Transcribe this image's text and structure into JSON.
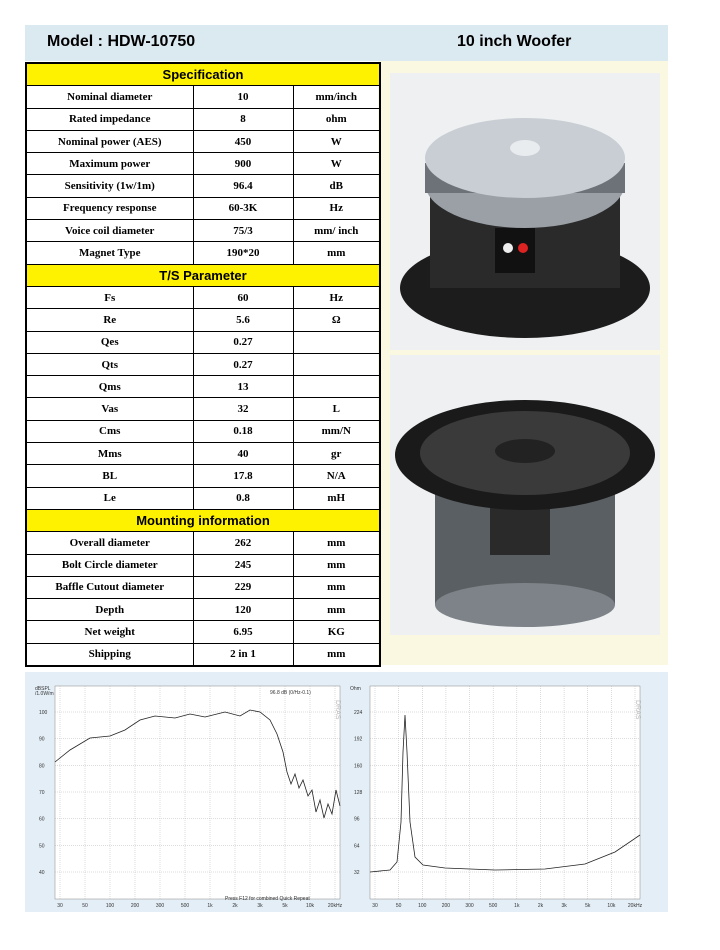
{
  "header": {
    "model": "Model : HDW-10750",
    "product": "10 inch Woofer"
  },
  "sections": [
    {
      "title": "Specification",
      "rows": [
        {
          "name": "Nominal diameter",
          "value": "10",
          "unit": "mm/inch"
        },
        {
          "name": "Rated impedance",
          "value": "8",
          "unit": "ohm"
        },
        {
          "name": "Nominal power (AES)",
          "value": "450",
          "unit": "W"
        },
        {
          "name": "Maximum power",
          "value": "900",
          "unit": "W"
        },
        {
          "name": "Sensitivity (1w/1m)",
          "value": "96.4",
          "unit": "dB"
        },
        {
          "name": "Frequency response",
          "value": "60-3K",
          "unit": "Hz"
        },
        {
          "name": "Voice coil diameter",
          "value": "75/3",
          "unit": "mm/ inch"
        },
        {
          "name": "Magnet Type",
          "value": "190*20",
          "unit": "mm"
        }
      ]
    },
    {
      "title": "T/S Parameter",
      "rows": [
        {
          "name": "Fs",
          "value": "60",
          "unit": "Hz"
        },
        {
          "name": "Re",
          "value": "5.6",
          "unit": "Ω"
        },
        {
          "name": "Qes",
          "value": "0.27"
        },
        {
          "name": "Qts",
          "value": "0.27"
        },
        {
          "name": "Qms",
          "value": "13"
        },
        {
          "name": "Vas",
          "value": "32",
          "unit": "L"
        },
        {
          "name": "Cms",
          "value": "0.18",
          "unit": "mm/N"
        },
        {
          "name": "Mms",
          "value": "40",
          "unit": "gr"
        },
        {
          "name": "BL",
          "value": "17.8",
          "unit": "N/A"
        },
        {
          "name": "Le",
          "value": "0.8",
          "unit": "mH"
        }
      ]
    },
    {
      "title": "Mounting information",
      "rows": [
        {
          "name": "Overall diameter",
          "value": "262",
          "unit": "mm"
        },
        {
          "name": "Bolt Circle diameter",
          "value": "245",
          "unit": "mm"
        },
        {
          "name": "Baffle Cutout diameter",
          "value": "229",
          "unit": "mm"
        },
        {
          "name": "Depth",
          "value": "120",
          "unit": "mm"
        },
        {
          "name": "Net weight",
          "value": "6.95",
          "unit": "KG"
        },
        {
          "name": "Shipping",
          "value": "2 in 1",
          "unit": "mm"
        }
      ]
    }
  ],
  "graphs": [
    {
      "unit": [
        "dBSPL",
        "/1.0W/m"
      ],
      "note": "96.8 dB (0/Hz-0.1)",
      "footer": "Press F12 for combined Quick Repeat",
      "watermark": "DRAS",
      "y_labels": [
        "100",
        "90",
        "80",
        "70",
        "60",
        "50",
        "40"
      ],
      "x_labels": [
        "30",
        "50",
        "100",
        "200",
        "300",
        "500",
        "1k",
        "2k",
        "3k",
        "5k",
        "10k",
        "20kHz"
      ]
    },
    {
      "unit": [
        "Ohm"
      ],
      "watermark": "DRAS",
      "y_labels": [
        "224",
        "192",
        "160",
        "128",
        "96",
        "64",
        "32"
      ],
      "x_labels": [
        "30",
        "50",
        "100",
        "200",
        "300",
        "500",
        "1k",
        "2k",
        "3k",
        "5k",
        "10k",
        "20kHz"
      ]
    }
  ]
}
